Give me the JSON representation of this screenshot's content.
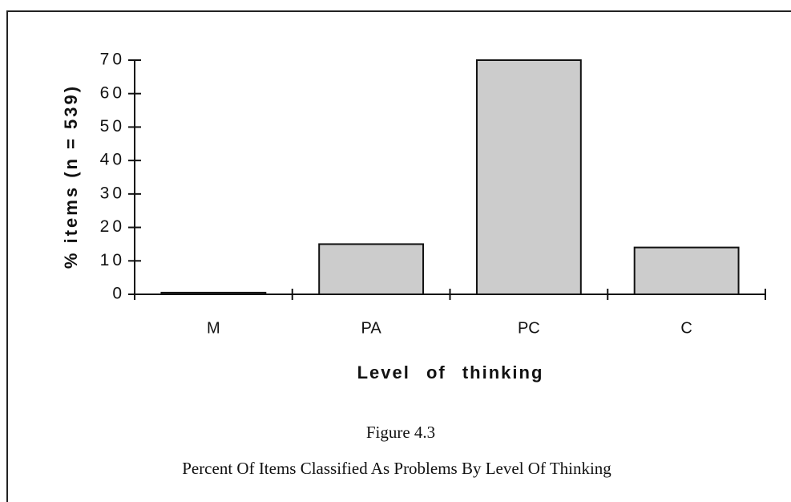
{
  "chart_data": {
    "type": "bar",
    "categories": [
      "M",
      "PA",
      "PC",
      "C"
    ],
    "values": [
      0.5,
      15,
      70,
      14
    ],
    "color": "#cccccc",
    "ylim": [
      0,
      70
    ],
    "yticks": [
      0,
      10,
      20,
      30,
      40,
      50,
      60,
      70
    ],
    "ylabel": "% items (n = 539)",
    "xlabel": "Level of thinking",
    "figure_label": "Figure 4.3",
    "caption": "Percent Of Items Classified As Problems By Level Of Thinking",
    "grid": false
  }
}
